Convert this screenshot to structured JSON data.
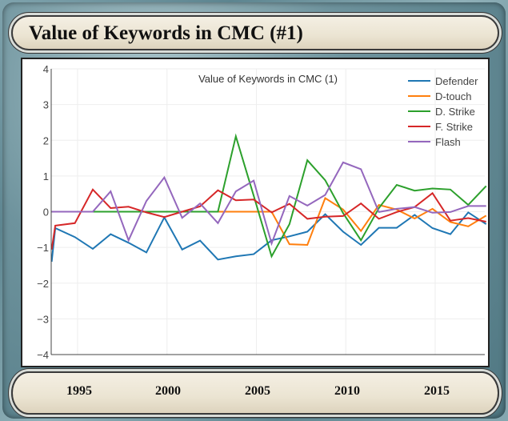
{
  "header": {
    "title": "Value of Keywords in CMC (#1)"
  },
  "footer": {
    "years": [
      "1995",
      "2000",
      "2005",
      "2010",
      "2015"
    ]
  },
  "chart_data": {
    "type": "line",
    "title": "Value of Keywords in CMC (1)",
    "xlabel": "",
    "ylabel": "",
    "xlim": [
      1993.5,
      2018.1
    ],
    "ylim": [
      -4,
      4
    ],
    "yticks": [
      4,
      3,
      2,
      1,
      0,
      -1,
      -2,
      -3,
      -4
    ],
    "ytick_labels": [
      "4",
      "3",
      "2",
      "1",
      "0",
      "−1",
      "−2",
      "−3",
      "−4"
    ],
    "xgrid": [
      1995,
      2000,
      2005,
      2010,
      2015
    ],
    "grid": true,
    "legend": "top-right",
    "x": [
      1993.55,
      1993.75,
      1994.85,
      1995.85,
      1996.85,
      1997.85,
      1998.85,
      1999.85,
      2000.85,
      2001.85,
      2002.85,
      2003.85,
      2004.85,
      2005.85,
      2006.85,
      2007.85,
      2008.85,
      2009.85,
      2010.85,
      2011.85,
      2012.85,
      2013.85,
      2014.85,
      2015.85,
      2016.85,
      2017.85
    ],
    "series": [
      {
        "name": "Defender",
        "color": "#1f77b4",
        "values": [
          -1.4,
          -0.46,
          -0.71,
          -1.04,
          -0.63,
          -0.87,
          -1.14,
          -0.16,
          -1.06,
          -0.81,
          -1.34,
          -1.25,
          -1.19,
          -0.8,
          -0.69,
          -0.56,
          -0.07,
          -0.56,
          -0.93,
          -0.45,
          -0.45,
          -0.09,
          -0.46,
          -0.63,
          -0.02,
          -0.35
        ]
      },
      {
        "name": "D-touch",
        "color": "#ff7f0e",
        "values": [
          0,
          0,
          0,
          0,
          0,
          0,
          0,
          0,
          0,
          0,
          0,
          0,
          0,
          0,
          -0.91,
          -0.93,
          0.38,
          0.06,
          -0.54,
          0.19,
          0.06,
          -0.19,
          0.08,
          -0.29,
          -0.41,
          -0.11
        ]
      },
      {
        "name": "D. Strike",
        "color": "#2ca02c",
        "values": [
          0,
          0,
          0,
          0,
          0,
          0,
          0,
          0,
          0,
          0,
          0,
          2.11,
          0.45,
          -1.25,
          -0.35,
          1.44,
          0.88,
          -0.04,
          -0.8,
          0.1,
          0.75,
          0.59,
          0.65,
          0.62,
          0.19,
          0.72
        ]
      },
      {
        "name": "F. Strike",
        "color": "#d62728",
        "values": [
          -1.06,
          -0.39,
          -0.32,
          0.62,
          0.1,
          0.14,
          -0.02,
          -0.15,
          0,
          0.15,
          0.6,
          0.32,
          0.34,
          -0.02,
          0.22,
          -0.2,
          -0.14,
          -0.12,
          0.23,
          -0.2,
          -0.01,
          0.13,
          0.52,
          -0.25,
          -0.18,
          -0.28
        ]
      },
      {
        "name": "Flash",
        "color": "#9467bd",
        "values": [
          0,
          0,
          0,
          0,
          0.57,
          -0.8,
          0.3,
          0.96,
          -0.17,
          0.23,
          -0.32,
          0.57,
          0.87,
          -0.89,
          0.44,
          0.17,
          0.47,
          1.38,
          1.19,
          -0.01,
          0.08,
          0.13,
          -0.03,
          -0.01,
          0.16,
          0.16
        ]
      }
    ]
  }
}
